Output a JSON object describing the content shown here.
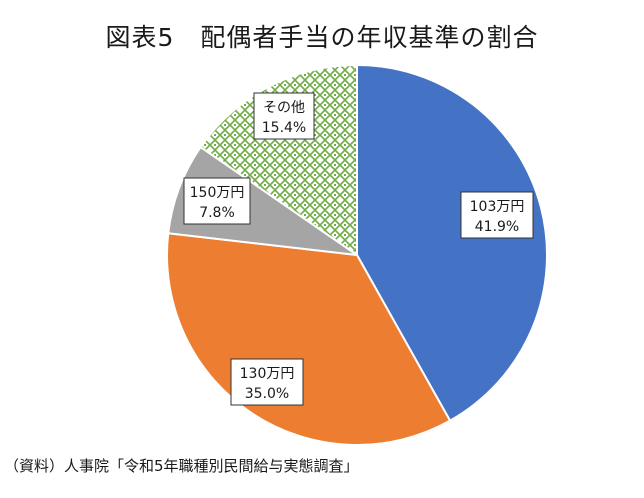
{
  "chart_data": {
    "type": "pie",
    "title": "図表5　配偶者手当の年収基準の割合",
    "start": "top",
    "direction": "clockwise",
    "slices": [
      {
        "name": "103万円",
        "value": 41.9,
        "label": "41.9%",
        "color": "#4472C4",
        "pattern": "solid"
      },
      {
        "name": "130万円",
        "value": 35.0,
        "label": "35.0%",
        "color": "#ED7D31",
        "pattern": "solid"
      },
      {
        "name": "150万円",
        "value": 7.8,
        "label": "7.8%",
        "color": "#A5A5A5",
        "pattern": "solid"
      },
      {
        "name": "その他",
        "value": 15.4,
        "label": "15.4%",
        "color": "#70AD47",
        "pattern": "diamond-lattice"
      }
    ]
  },
  "source_note": "（資料）人事院「令和5年職種別民間給与実態調査」"
}
